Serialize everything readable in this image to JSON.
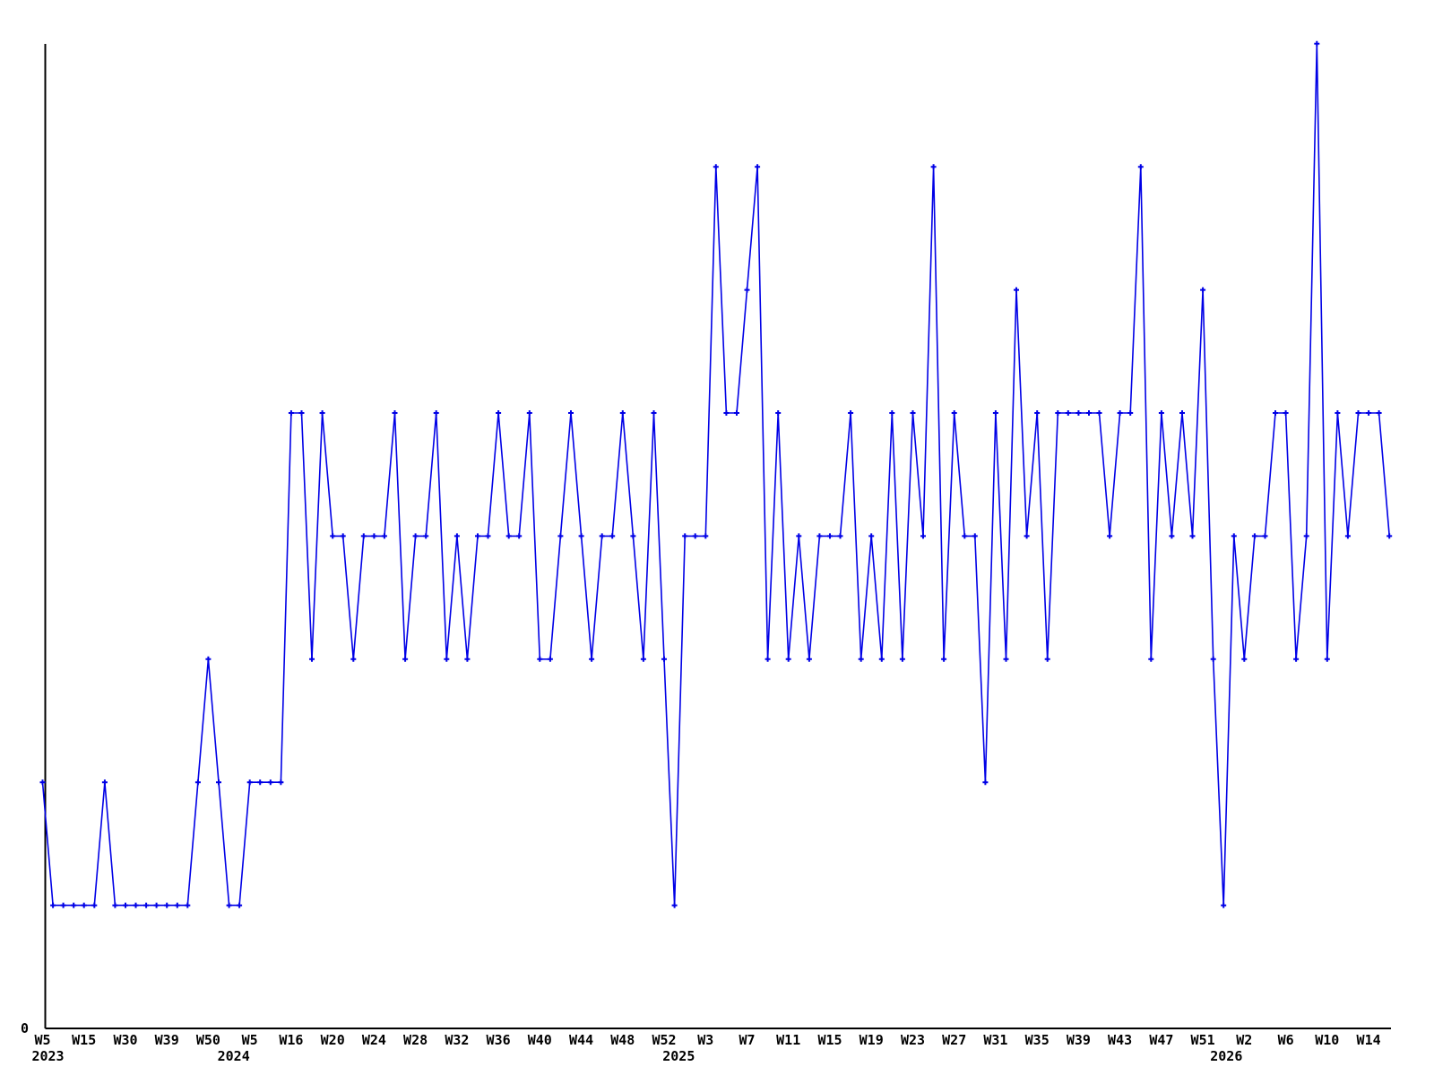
{
  "page": {
    "background_color": "#ffffff"
  },
  "chart_data": {
    "type": "line",
    "title": "",
    "xlabel": "",
    "ylabel": "",
    "grid": false,
    "legend_position": "none",
    "series_color": "#0000e6",
    "axis_color": "#000000",
    "marker": "plus",
    "origin_label": "0",
    "ylim": [
      0,
      8
    ],
    "x_tick_every": 4,
    "x_ticks": [
      {
        "index": 0,
        "week": "W5",
        "year": "2023"
      },
      {
        "index": 4,
        "week": "W15"
      },
      {
        "index": 8,
        "week": "W30"
      },
      {
        "index": 12,
        "week": "W39"
      },
      {
        "index": 16,
        "week": "W50"
      },
      {
        "index": 20,
        "week": "W5",
        "year": "2024"
      },
      {
        "index": 24,
        "week": "W16"
      },
      {
        "index": 28,
        "week": "W20"
      },
      {
        "index": 32,
        "week": "W24"
      },
      {
        "index": 36,
        "week": "W28"
      },
      {
        "index": 40,
        "week": "W32"
      },
      {
        "index": 44,
        "week": "W36"
      },
      {
        "index": 48,
        "week": "W40"
      },
      {
        "index": 52,
        "week": "W44"
      },
      {
        "index": 56,
        "week": "W48"
      },
      {
        "index": 60,
        "week": "W52"
      },
      {
        "index": 64,
        "week": "W3",
        "year": "2025"
      },
      {
        "index": 68,
        "week": "W7"
      },
      {
        "index": 72,
        "week": "W11"
      },
      {
        "index": 76,
        "week": "W15"
      },
      {
        "index": 80,
        "week": "W19"
      },
      {
        "index": 84,
        "week": "W23"
      },
      {
        "index": 88,
        "week": "W27"
      },
      {
        "index": 92,
        "week": "W31"
      },
      {
        "index": 96,
        "week": "W35"
      },
      {
        "index": 100,
        "week": "W39"
      },
      {
        "index": 104,
        "week": "W43"
      },
      {
        "index": 108,
        "week": "W47"
      },
      {
        "index": 112,
        "week": "W51"
      },
      {
        "index": 116,
        "week": "W2",
        "year": "2026"
      },
      {
        "index": 120,
        "week": "W6"
      },
      {
        "index": 124,
        "week": "W10"
      },
      {
        "index": 128,
        "week": "W14"
      }
    ],
    "values": [
      2,
      1,
      1,
      1,
      1,
      1,
      2,
      1,
      1,
      1,
      1,
      1,
      1,
      1,
      1,
      2,
      3,
      2,
      1,
      1,
      2,
      2,
      2,
      2,
      5,
      5,
      3,
      5,
      4,
      4,
      3,
      4,
      4,
      4,
      5,
      3,
      4,
      4,
      5,
      3,
      4,
      3,
      4,
      4,
      5,
      4,
      4,
      5,
      3,
      3,
      4,
      5,
      4,
      3,
      4,
      4,
      5,
      4,
      3,
      5,
      3,
      1,
      4,
      4,
      4,
      7,
      5,
      5,
      6,
      7,
      3,
      5,
      3,
      4,
      3,
      4,
      4,
      4,
      5,
      3,
      4,
      3,
      5,
      3,
      5,
      4,
      7,
      3,
      5,
      4,
      4,
      2,
      5,
      3,
      6,
      4,
      5,
      3,
      5,
      5,
      5,
      5,
      5,
      4,
      5,
      5,
      7,
      3,
      5,
      4,
      5,
      4,
      6,
      3,
      1,
      4,
      3,
      4,
      4,
      5,
      5,
      3,
      4,
      8,
      3,
      5,
      4,
      5,
      5,
      5,
      4
    ]
  }
}
